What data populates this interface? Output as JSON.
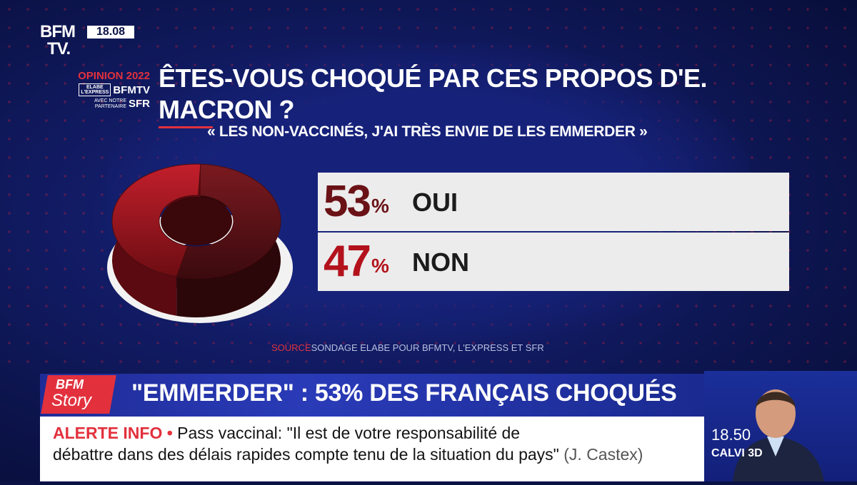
{
  "channel": {
    "logo_line1": "BFM",
    "logo_line2": "TV.",
    "clock": "18.08"
  },
  "opinion": {
    "title": "OPINION 2022",
    "elabe_line1": "ELABE",
    "elabe_line2": "L'EXPRESS",
    "brand": "BFMTV",
    "partner_text_line1": "AVEC NOTRE",
    "partner_text_line2": "PARTENAIRE",
    "partner": "SFR"
  },
  "question": {
    "title": "ÊTES-VOUS CHOQUÉ PAR CES PROPOS D'E. MACRON ?",
    "quote": "« LES NON-VACCINÉS, J'AI TRÈS ENVIE DE LES EMMERDER »"
  },
  "results": [
    {
      "value": "53",
      "sign": "%",
      "label": "OUI"
    },
    {
      "value": "47",
      "sign": "%",
      "label": "NON"
    }
  ],
  "chart_data": {
    "type": "pie",
    "title": "ÊTES-VOUS CHOQUÉ PAR CES PROPOS D'E. MACRON ?",
    "categories": [
      "OUI",
      "NON"
    ],
    "values": [
      53,
      47
    ],
    "colors": [
      "#6a1216",
      "#b3121c"
    ]
  },
  "source": {
    "label": "SOURCE",
    "text": "SONDAGE ELABE POUR BFMTV, L'EXPRESS ET SFR"
  },
  "story": {
    "logo_top": "BFM",
    "logo_bottom": "Story",
    "headline": "\"EMMERDER\" : 53% DES FRANÇAIS CHOQUÉS"
  },
  "alert": {
    "tag": "ALERTE INFO •",
    "line1": "Pass vaccinal: \"Il est de votre responsabilité de",
    "line2": "débattre dans des délais rapides compte tenu de la situation du pays\"",
    "attribution": "(J. Castex)"
  },
  "next": {
    "time": "18.50",
    "program": "CALVI 3D"
  },
  "colors": {
    "accent_red": "#e2313d",
    "navy": "#0b1246",
    "banner_blue": "#2a3bb8"
  }
}
